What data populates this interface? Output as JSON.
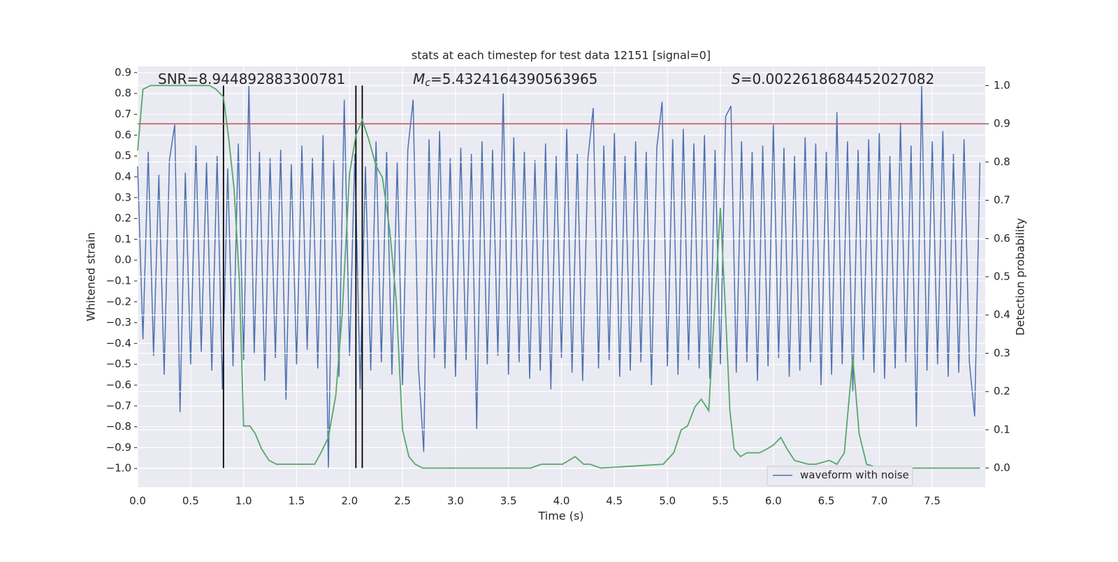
{
  "chart_data": {
    "type": "line",
    "title": "stats at each timestep for test data 12151 [signal=0]",
    "xlabel": "Time (s)",
    "ylabel": "Whitened strain",
    "y2label": "Detection probability",
    "annotations": [
      {
        "text": "SNR=8.944892883300781"
      },
      {
        "symbol": "M",
        "subscript": "c",
        "text": "=5.4324164390563965"
      },
      {
        "symbol": "S",
        "text": "=0.0022618684452027082"
      }
    ],
    "xlim": [
      0,
      8.0
    ],
    "ylim": [
      -1.09,
      0.93
    ],
    "y2lim": [
      -0.05,
      1.05
    ],
    "xticks": [
      {
        "value": 0,
        "label": "0.0"
      },
      {
        "value": 0.5,
        "label": "0.5"
      },
      {
        "value": 1,
        "label": "1.0"
      },
      {
        "value": 1.5,
        "label": "1.5"
      },
      {
        "value": 2,
        "label": "2.0"
      },
      {
        "value": 2.5,
        "label": "2.5"
      },
      {
        "value": 3,
        "label": "3.0"
      },
      {
        "value": 3.5,
        "label": "3.5"
      },
      {
        "value": 4,
        "label": "4.0"
      },
      {
        "value": 4.5,
        "label": "4.5"
      },
      {
        "value": 5,
        "label": "5.0"
      },
      {
        "value": 5.5,
        "label": "5.5"
      },
      {
        "value": 6,
        "label": "6.0"
      },
      {
        "value": 6.5,
        "label": "6.5"
      },
      {
        "value": 7,
        "label": "7.0"
      },
      {
        "value": 7.5,
        "label": "7.5"
      }
    ],
    "yticks": [
      {
        "value": -1,
        "label": "−1.0"
      },
      {
        "value": -0.9,
        "label": "−0.9"
      },
      {
        "value": -0.8,
        "label": "−0.8"
      },
      {
        "value": -0.7,
        "label": "−0.7"
      },
      {
        "value": -0.6,
        "label": "−0.6"
      },
      {
        "value": -0.5,
        "label": "−0.5"
      },
      {
        "value": -0.4,
        "label": "−0.4"
      },
      {
        "value": -0.3,
        "label": "−0.3"
      },
      {
        "value": -0.2,
        "label": "−0.2"
      },
      {
        "value": -0.1,
        "label": "−0.1"
      },
      {
        "value": 0,
        "label": "0.0"
      },
      {
        "value": 0.1,
        "label": "0.1"
      },
      {
        "value": 0.2,
        "label": "0.2"
      },
      {
        "value": 0.3,
        "label": "0.3"
      },
      {
        "value": 0.4,
        "label": "0.4"
      },
      {
        "value": 0.5,
        "label": "0.5"
      },
      {
        "value": 0.6,
        "label": "0.6"
      },
      {
        "value": 0.7,
        "label": "0.7"
      },
      {
        "value": 0.8,
        "label": "0.8"
      },
      {
        "value": 0.9,
        "label": "0.9"
      }
    ],
    "y2ticks": [
      {
        "value": 0,
        "label": "0.0"
      },
      {
        "value": 0.1,
        "label": "0.1"
      },
      {
        "value": 0.2,
        "label": "0.2"
      },
      {
        "value": 0.3,
        "label": "0.3"
      },
      {
        "value": 0.4,
        "label": "0.4"
      },
      {
        "value": 0.5,
        "label": "0.5"
      },
      {
        "value": 0.6,
        "label": "0.6"
      },
      {
        "value": 0.7,
        "label": "0.7"
      },
      {
        "value": 0.8,
        "label": "0.8"
      },
      {
        "value": 0.9,
        "label": "0.9"
      },
      {
        "value": 1,
        "label": "1.0"
      }
    ],
    "grid": true,
    "legend": "lower right",
    "series": [
      {
        "name": "waveform with noise",
        "color": "#4c72b0",
        "x": [
          0,
          0.05,
          0.1,
          0.15,
          0.2,
          0.25,
          0.3,
          0.35,
          0.4,
          0.45,
          0.5,
          0.55,
          0.6,
          0.65,
          0.7,
          0.75,
          0.8,
          0.85,
          0.9,
          0.95,
          1,
          1.05,
          1.1,
          1.15,
          1.2,
          1.25,
          1.3,
          1.35,
          1.4,
          1.45,
          1.5,
          1.55,
          1.6,
          1.65,
          1.7,
          1.75,
          1.8,
          1.85,
          1.9,
          1.95,
          2,
          2.05,
          2.1,
          2.15,
          2.2,
          2.25,
          2.3,
          2.35,
          2.4,
          2.45,
          2.5,
          2.55,
          2.6,
          2.65,
          2.7,
          2.75,
          2.8,
          2.85,
          2.9,
          2.95,
          3,
          3.05,
          3.1,
          3.15,
          3.2,
          3.25,
          3.3,
          3.35,
          3.4,
          3.45,
          3.5,
          3.55,
          3.6,
          3.65,
          3.7,
          3.75,
          3.8,
          3.85,
          3.9,
          3.95,
          4,
          4.05,
          4.1,
          4.15,
          4.2,
          4.25,
          4.3,
          4.35,
          4.4,
          4.45,
          4.5,
          4.55,
          4.6,
          4.65,
          4.7,
          4.75,
          4.8,
          4.85,
          4.9,
          4.95,
          5,
          5.05,
          5.1,
          5.15,
          5.2,
          5.25,
          5.3,
          5.35,
          5.4,
          5.45,
          5.5,
          5.55,
          5.6,
          5.65,
          5.7,
          5.75,
          5.8,
          5.85,
          5.9,
          5.95,
          6,
          6.05,
          6.1,
          6.15,
          6.2,
          6.25,
          6.3,
          6.35,
          6.4,
          6.45,
          6.5,
          6.55,
          6.6,
          6.65,
          6.7,
          6.75,
          6.8,
          6.85,
          6.9,
          6.95,
          7,
          7.05,
          7.1,
          7.15,
          7.2,
          7.25,
          7.3,
          7.35,
          7.4,
          7.45,
          7.5,
          7.55,
          7.6,
          7.65,
          7.7,
          7.75,
          7.8,
          7.85,
          7.9,
          7.95
        ],
        "values": [
          0.45,
          -0.38,
          0.52,
          -0.46,
          0.41,
          -0.55,
          0.48,
          0.65,
          -0.73,
          0.42,
          -0.5,
          0.55,
          -0.44,
          0.47,
          -0.53,
          0.5,
          -0.62,
          0.44,
          -0.51,
          0.56,
          -0.48,
          0.84,
          -0.45,
          0.52,
          -0.58,
          0.49,
          -0.47,
          0.53,
          -0.67,
          0.46,
          -0.5,
          0.55,
          -0.43,
          0.49,
          -0.52,
          0.6,
          -1.0,
          0.48,
          -0.56,
          0.77,
          -0.46,
          0.51,
          -0.62,
          0.45,
          -0.53,
          0.57,
          -0.49,
          0.52,
          -0.55,
          0.47,
          -0.6,
          0.53,
          0.77,
          -0.51,
          -0.92,
          0.58,
          -0.47,
          0.62,
          -0.52,
          0.49,
          -0.56,
          0.54,
          -0.48,
          0.51,
          -0.81,
          0.57,
          -0.5,
          0.53,
          -0.46,
          0.8,
          -0.55,
          0.59,
          -0.49,
          0.52,
          -0.57,
          0.48,
          -0.53,
          0.56,
          -0.62,
          0.5,
          -0.47,
          0.63,
          -0.54,
          0.51,
          -0.58,
          0.49,
          0.73,
          -0.52,
          0.55,
          -0.48,
          0.61,
          -0.56,
          0.5,
          -0.53,
          0.57,
          -0.49,
          0.52,
          -0.6,
          0.54,
          0.76,
          -0.51,
          0.58,
          -0.55,
          0.63,
          -0.48,
          0.56,
          -0.52,
          0.6,
          -0.57,
          0.53,
          -0.5,
          0.69,
          0.74,
          -0.54,
          0.57,
          -0.49,
          0.52,
          -0.58,
          0.55,
          -0.51,
          0.65,
          -0.47,
          0.54,
          -0.56,
          0.5,
          -0.53,
          0.59,
          -0.49,
          0.56,
          -0.6,
          0.52,
          -0.55,
          0.71,
          -0.5,
          0.57,
          -0.63,
          0.53,
          -0.48,
          0.58,
          -0.54,
          0.61,
          -0.57,
          0.5,
          -0.52,
          0.66,
          -0.49,
          0.55,
          -0.8,
          0.84,
          -0.53,
          0.57,
          -0.5,
          0.62,
          -0.56,
          0.51,
          -0.54,
          0.58,
          -0.49,
          -0.75,
          0.47
        ]
      },
      {
        "color": "#55a868",
        "axis": "y2",
        "x": [
          0,
          0.05,
          0.12,
          0.68,
          0.74,
          0.81,
          0.86,
          0.91,
          0.96,
          1.0,
          1.06,
          1.11,
          1.17,
          1.24,
          1.31,
          1.37,
          1.5,
          1.6,
          1.67,
          1.73,
          1.8,
          1.87,
          1.93,
          2.0,
          2.06,
          2.12,
          2.18,
          2.25,
          2.31,
          2.38,
          2.44,
          2.5,
          2.56,
          2.62,
          2.69,
          2.79,
          3.32,
          3.71,
          3.81,
          3.91,
          4.01,
          4.13,
          4.21,
          4.27,
          4.37,
          4.96,
          5.06,
          5.13,
          5.19,
          5.26,
          5.32,
          5.39,
          5.5,
          5.55,
          5.59,
          5.63,
          5.69,
          5.75,
          5.81,
          5.87,
          5.94,
          6.0,
          6.07,
          6.13,
          6.2,
          6.33,
          6.4,
          6.53,
          6.6,
          6.67,
          6.75,
          6.81,
          6.88,
          7.0,
          7.2,
          7.5,
          7.95
        ],
        "values": [
          0.83,
          0.99,
          1.0,
          1.0,
          0.99,
          0.97,
          0.86,
          0.73,
          0.49,
          0.11,
          0.11,
          0.09,
          0.05,
          0.02,
          0.01,
          0.01,
          0.01,
          0.01,
          0.01,
          0.04,
          0.08,
          0.19,
          0.4,
          0.77,
          0.87,
          0.91,
          0.86,
          0.79,
          0.76,
          0.62,
          0.44,
          0.1,
          0.03,
          0.01,
          0.0,
          0.0,
          0.0,
          0.0,
          0.01,
          0.01,
          0.01,
          0.03,
          0.01,
          0.01,
          0.0,
          0.01,
          0.04,
          0.1,
          0.11,
          0.16,
          0.18,
          0.15,
          0.68,
          0.4,
          0.15,
          0.05,
          0.03,
          0.04,
          0.04,
          0.04,
          0.05,
          0.06,
          0.08,
          0.05,
          0.02,
          0.01,
          0.01,
          0.02,
          0.01,
          0.04,
          0.29,
          0.09,
          0.01,
          0.0,
          0.0,
          0.0,
          0.0
        ]
      }
    ],
    "threshold": {
      "y": 0.9,
      "axis": "y2",
      "color": "#c44e52"
    },
    "vlines": {
      "x": [
        0.81,
        2.06,
        2.12
      ],
      "ymin": 0,
      "ymax": 1,
      "axis": "y2",
      "color": "#000000"
    }
  }
}
